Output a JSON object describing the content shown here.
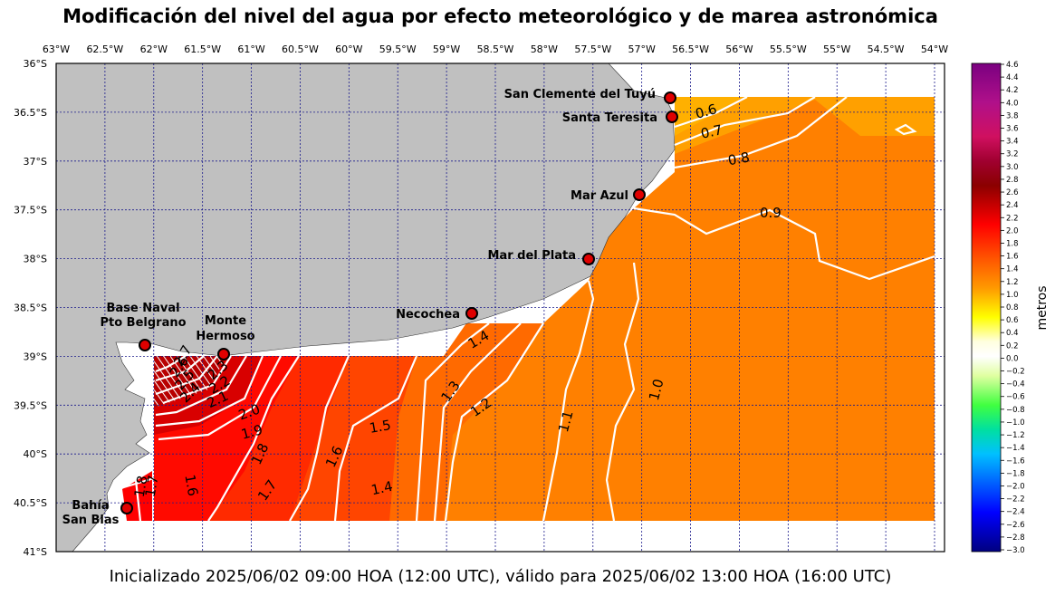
{
  "title": "Modificación del nivel del agua por efecto meteorológico y de marea astronómica",
  "footer": "Inicializado 2025/06/02 09:00 HOA (12:00 UTC), válido para 2025/06/02 13:00 HOA (16:00 UTC)",
  "colorbar": {
    "label": "metros",
    "ticks": [
      "4.6",
      "4.4",
      "4.2",
      "4.0",
      "3.8",
      "3.6",
      "3.4",
      "3.2",
      "3.0",
      "2.8",
      "2.6",
      "2.4",
      "2.2",
      "2.0",
      "1.8",
      "1.6",
      "1.4",
      "1.2",
      "1.0",
      "0.8",
      "0.6",
      "0.4",
      "0.2",
      "0.0",
      "−0.2",
      "−0.4",
      "−0.6",
      "−0.8",
      "−1.0",
      "−1.2",
      "−1.4",
      "−1.6",
      "−1.8",
      "−2.0",
      "−2.2",
      "−2.4",
      "−2.6",
      "−2.8",
      "−3.0"
    ]
  },
  "lon_ticks": [
    "63°W",
    "62.5°W",
    "62°W",
    "61.5°W",
    "61°W",
    "60.5°W",
    "60°W",
    "59.5°W",
    "59°W",
    "58.5°W",
    "58°W",
    "57.5°W",
    "57°W",
    "56.5°W",
    "56°W",
    "55.5°W",
    "55°W",
    "54.5°W",
    "54°W"
  ],
  "lat_ticks": [
    "36°S",
    "36.5°S",
    "37°S",
    "37.5°S",
    "38°S",
    "38.5°S",
    "39°S",
    "39.5°S",
    "40°S",
    "40.5°S",
    "41°S"
  ],
  "stations": [
    {
      "name": "San Clemente del Tuyú"
    },
    {
      "name": "Santa Teresita"
    },
    {
      "name": "Mar Azul"
    },
    {
      "name": "Mar del Plata"
    },
    {
      "name": "Necochea"
    },
    {
      "name": "Base Naval",
      "name2": "Pto Belgrano"
    },
    {
      "name": "Monte",
      "name2": "Hermoso"
    },
    {
      "name": "Bahía",
      "name2": "San Blas"
    }
  ],
  "contour_labels": [
    "0.6",
    "0.7",
    "0.8",
    "0.9",
    "1.0",
    "1.1",
    "1.2",
    "1.3",
    "1.4",
    "1.4",
    "1.5",
    "1.6",
    "1.6",
    "1.7",
    "1.8",
    "1.9",
    "2.0",
    "2.1",
    "2.2",
    "2.3",
    "2.4",
    "2.5",
    "2.6",
    "2.7",
    "1.8",
    "1.7"
  ],
  "colors": {
    "land": "#c0c0c0",
    "grid": "#1a1a8c",
    "contour": "#ffffff",
    "station": "#e00000"
  }
}
